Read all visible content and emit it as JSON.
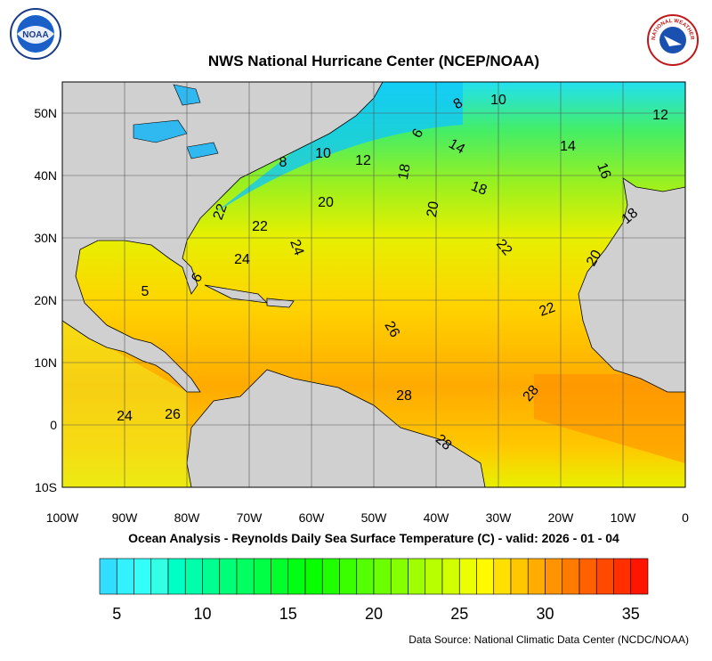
{
  "title": "NWS National Hurricane Center (NCEP/NOAA)",
  "logos": {
    "noaa": "NOAA",
    "nws": "NATIONAL WEATHER SERVICE"
  },
  "map": {
    "lon_ticks": [
      "100W",
      "90W",
      "80W",
      "70W",
      "60W",
      "50W",
      "40W",
      "30W",
      "20W",
      "10W",
      "0"
    ],
    "lat_ticks": [
      "50N",
      "40N",
      "30N",
      "20N",
      "10N",
      "0",
      "10S"
    ],
    "contour_labels": [
      "10",
      "8",
      "12",
      "6",
      "14",
      "14",
      "8",
      "10",
      "12",
      "18",
      "16",
      "18",
      "20",
      "20",
      "18",
      "22",
      "22",
      "24",
      "22",
      "24",
      "20",
      "6",
      "5",
      "22",
      "26",
      "28",
      "28",
      "24",
      "26",
      "28"
    ]
  },
  "subtitle": "Ocean Analysis - Reynolds Daily Sea Surface Temperature (C) - valid: 2026 - 01 - 04",
  "colorbar": {
    "range": [
      4,
      36
    ],
    "ticks": [
      5,
      10,
      15,
      20,
      25,
      30,
      35
    ]
  },
  "source": "Data Source: National Climatic Data Center (NCDC/NOAA)"
}
